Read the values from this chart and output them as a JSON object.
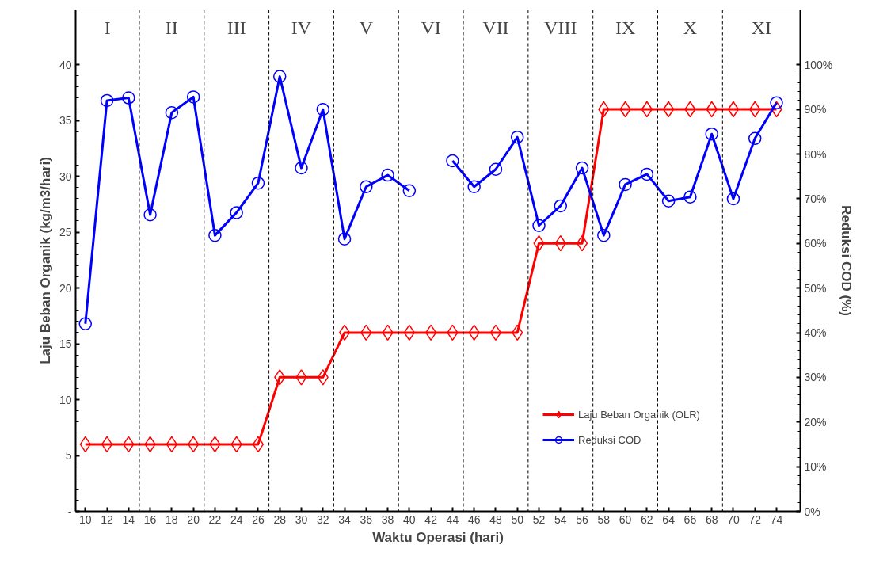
{
  "chart_data": {
    "type": "line",
    "xlabel": "Waktu Operasi (hari)",
    "ylabel": "Laju Beban Organik (kg/m3/hari)",
    "y2label": "Reduksi COD (%)",
    "x": [
      10,
      12,
      14,
      16,
      18,
      20,
      22,
      24,
      26,
      28,
      30,
      32,
      34,
      36,
      38,
      40,
      42,
      44,
      46,
      48,
      50,
      52,
      54,
      56,
      58,
      60,
      62,
      64,
      66,
      68,
      70,
      72,
      74
    ],
    "series": [
      {
        "name": "Laju Beban Organik (OLR)",
        "color": "#ff0000",
        "marker": "diamond",
        "values": [
          6,
          6,
          6,
          6,
          6,
          6,
          6,
          6,
          6,
          12,
          12,
          12,
          16,
          16,
          16,
          16,
          16,
          16,
          16,
          16,
          16,
          24,
          24,
          24,
          36,
          36,
          36,
          36,
          36,
          36,
          36,
          36,
          36
        ]
      },
      {
        "name": "Reduksi COD",
        "color": "#0000ff",
        "marker": "circle",
        "axis": "y2",
        "values": [
          42,
          92,
          92.6,
          66.4,
          89.3,
          92.8,
          61.8,
          66.9,
          73.5,
          97.4,
          76.9,
          90,
          61,
          72.7,
          75.3,
          71.8,
          null,
          78.5,
          72.7,
          76.6,
          83.8,
          64,
          68.4,
          76.9,
          61.8,
          73.2,
          75.5,
          69.5,
          70.4,
          84.5,
          70,
          83.5,
          91.5
        ]
      }
    ],
    "xlim": [
      9.1,
      76.2
    ],
    "xticks": [
      10,
      12,
      14,
      16,
      18,
      20,
      22,
      24,
      26,
      28,
      30,
      32,
      34,
      36,
      38,
      40,
      42,
      44,
      46,
      48,
      50,
      52,
      54,
      56,
      58,
      60,
      62,
      64,
      66,
      68,
      70,
      72,
      74
    ],
    "ylim": [
      0,
      44.9
    ],
    "yticks": [
      {
        "value": 0,
        "label": "-"
      },
      5,
      10,
      15,
      20,
      25,
      30,
      35,
      40
    ],
    "y2lim": [
      0,
      112.3
    ],
    "y2ticks": [
      {
        "value": 0,
        "label": "0%"
      },
      {
        "value": 10,
        "label": "10%"
      },
      {
        "value": 20,
        "label": "20%"
      },
      {
        "value": 30,
        "label": "30%"
      },
      {
        "value": 40,
        "label": "40%"
      },
      {
        "value": 50,
        "label": "50%"
      },
      {
        "value": 60,
        "label": "60%"
      },
      {
        "value": 70,
        "label": "70%"
      },
      {
        "value": 80,
        "label": "80%"
      },
      {
        "value": 90,
        "label": "90%"
      },
      {
        "value": 100,
        "label": "100%"
      }
    ],
    "ref_lines": [
      {
        "axis": "x",
        "value": 15,
        "line_style": "dashed",
        "color": "#000000"
      },
      {
        "axis": "x",
        "value": 21,
        "line_style": "dashed",
        "color": "#000000"
      },
      {
        "axis": "x",
        "value": 27,
        "line_style": "dashed",
        "color": "#000000"
      },
      {
        "axis": "x",
        "value": 33,
        "line_style": "dashed",
        "color": "#000000"
      },
      {
        "axis": "x",
        "value": 39,
        "line_style": "dashed",
        "color": "#000000"
      },
      {
        "axis": "x",
        "value": 45,
        "line_style": "dashed",
        "color": "#000000"
      },
      {
        "axis": "x",
        "value": 51,
        "line_style": "dashed",
        "color": "#000000"
      },
      {
        "axis": "x",
        "value": 57,
        "line_style": "dashed",
        "color": "#000000"
      },
      {
        "axis": "x",
        "value": 63,
        "line_style": "dashed",
        "color": "#000000"
      },
      {
        "axis": "x",
        "value": 69,
        "line_style": "dashed",
        "color": "#000000"
      }
    ],
    "annotations": [
      "I",
      "II",
      "III",
      "IV",
      "V",
      "VI",
      "VII",
      "VIII",
      "IX",
      "X",
      "XI"
    ],
    "line_style": "solid",
    "grid": false,
    "legend": "bottom right"
  }
}
